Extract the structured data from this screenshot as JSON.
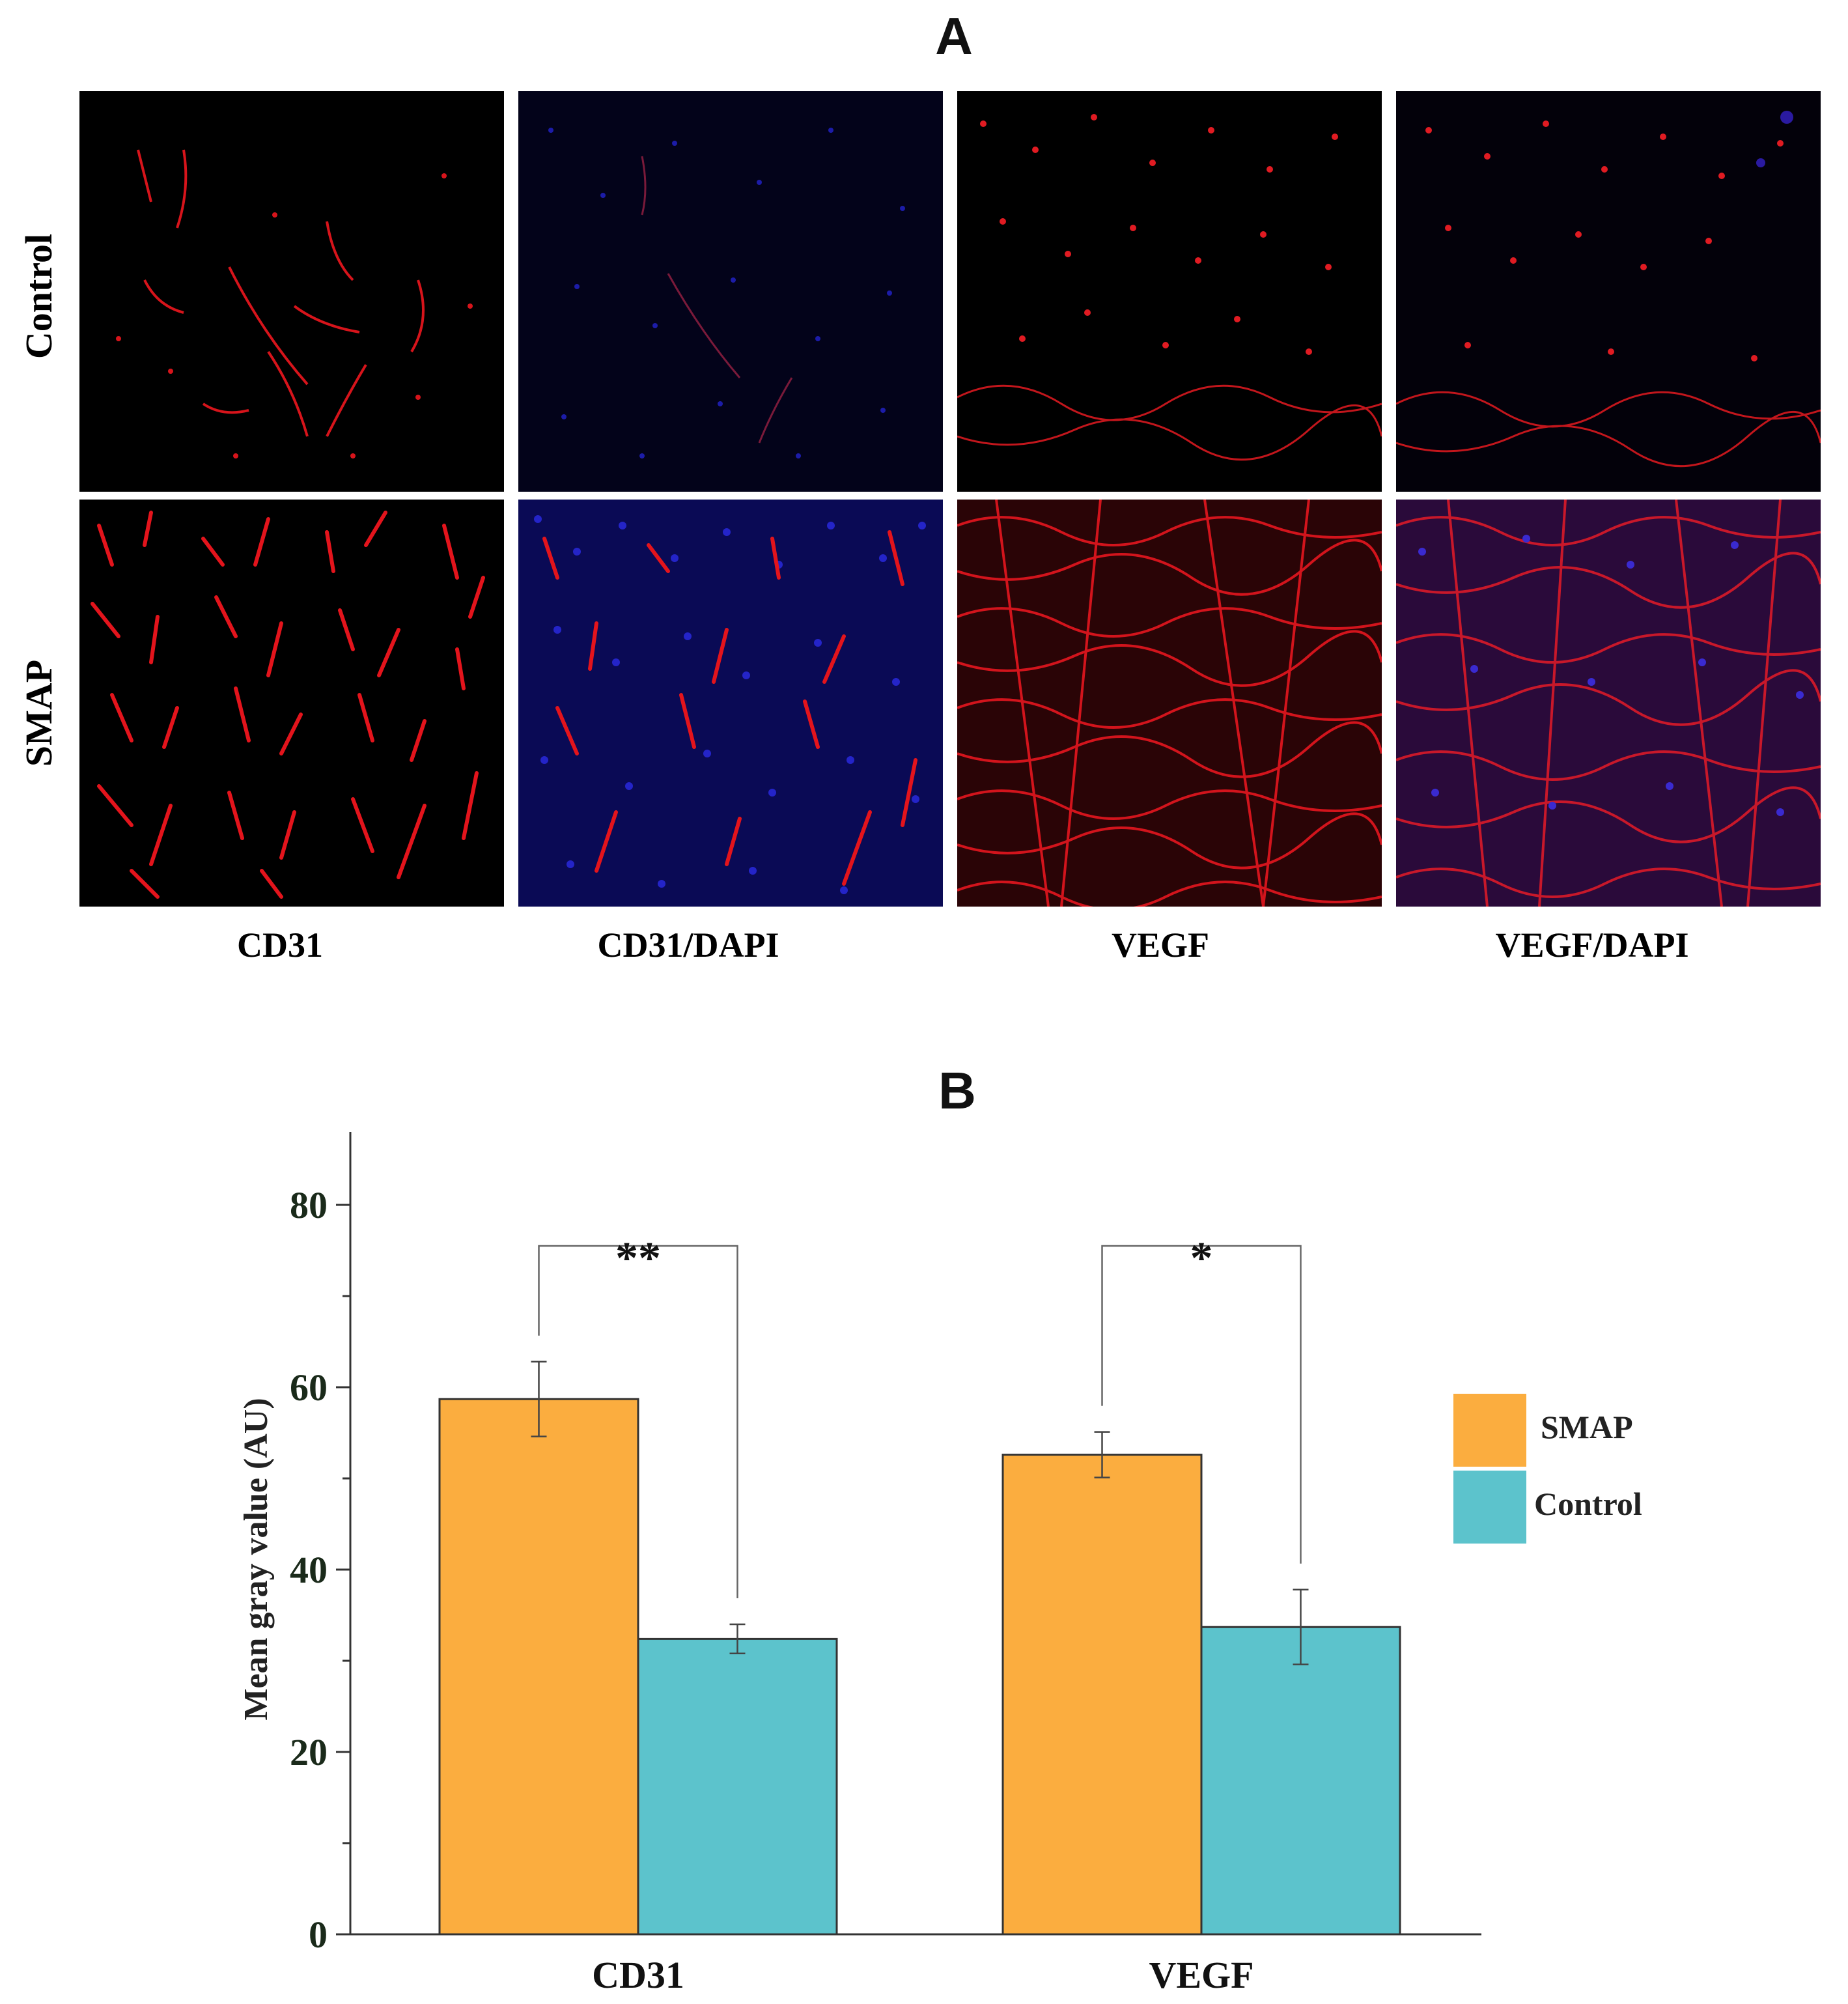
{
  "panel_a": {
    "letter": "A",
    "row_labels": [
      "Control",
      "SMAP"
    ],
    "column_labels": [
      "CD31",
      "CD31/DAPI",
      "VEGF",
      "VEGF/DAPI"
    ]
  },
  "chart_data": {
    "type": "bar",
    "panel_letter": "B",
    "categories": [
      "CD31",
      "VEGF"
    ],
    "series": [
      {
        "name": "SMAP",
        "color": "#FBAD3F",
        "values": [
          58.7,
          52.6
        ],
        "errors": [
          4.1,
          2.5
        ]
      },
      {
        "name": "Control",
        "color": "#5CC3CC",
        "values": [
          32.4,
          33.7
        ],
        "errors": [
          1.6,
          4.1
        ]
      }
    ],
    "ylabel": "Mean gray value (AU)",
    "xlabel": "",
    "ylim": [
      0,
      88
    ],
    "yticks": [
      0,
      20,
      40,
      60,
      80
    ],
    "significance": [
      {
        "category": "CD31",
        "label": "**",
        "bracket_y": 75.5
      },
      {
        "category": "VEGF",
        "label": "*",
        "bracket_y": 75.5
      }
    ],
    "legend_position": "right"
  }
}
